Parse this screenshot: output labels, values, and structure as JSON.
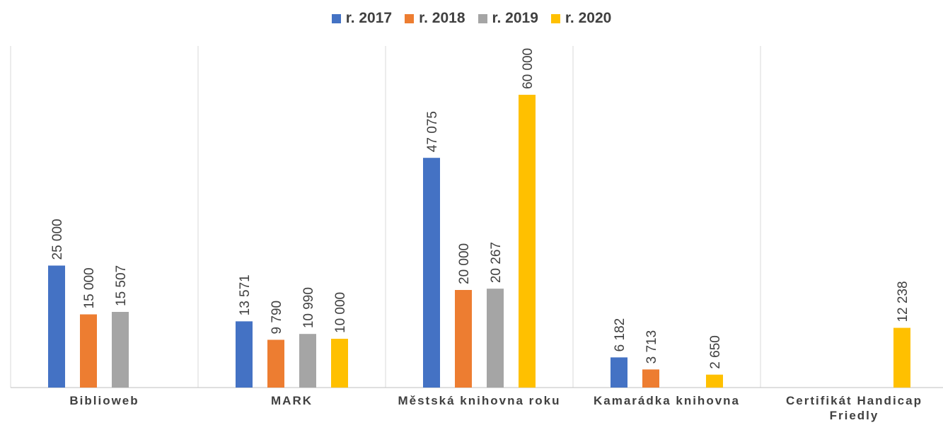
{
  "chart_data": {
    "type": "bar",
    "categories": [
      "Biblioweb",
      "MARK",
      "Městská knihovna roku",
      "Kamarádka knihovna",
      "Certifikát Handicap Friedly"
    ],
    "series": [
      {
        "name": "r. 2017",
        "color": "#4472c4",
        "values": [
          25000,
          13571,
          47075,
          6182,
          null
        ],
        "value_labels": [
          "25 000",
          "13 571",
          "47 075",
          "6 182",
          null
        ]
      },
      {
        "name": "r. 2018",
        "color": "#ed7d31",
        "values": [
          15000,
          9790,
          20000,
          3713,
          null
        ],
        "value_labels": [
          "15 000",
          "9 790",
          "20 000",
          "3 713",
          null
        ]
      },
      {
        "name": "r. 2019",
        "color": "#a5a5a5",
        "values": [
          15507,
          10990,
          20267,
          null,
          null
        ],
        "value_labels": [
          "15 507",
          "10 990",
          "20 267",
          null,
          null
        ]
      },
      {
        "name": "r. 2020",
        "color": "#ffc000",
        "values": [
          null,
          10000,
          60000,
          2650,
          12238
        ],
        "value_labels": [
          null,
          "10 000",
          "60 000",
          "2 650",
          "12 238"
        ]
      }
    ],
    "ylim": [
      0,
      70000
    ],
    "legend": "top"
  }
}
